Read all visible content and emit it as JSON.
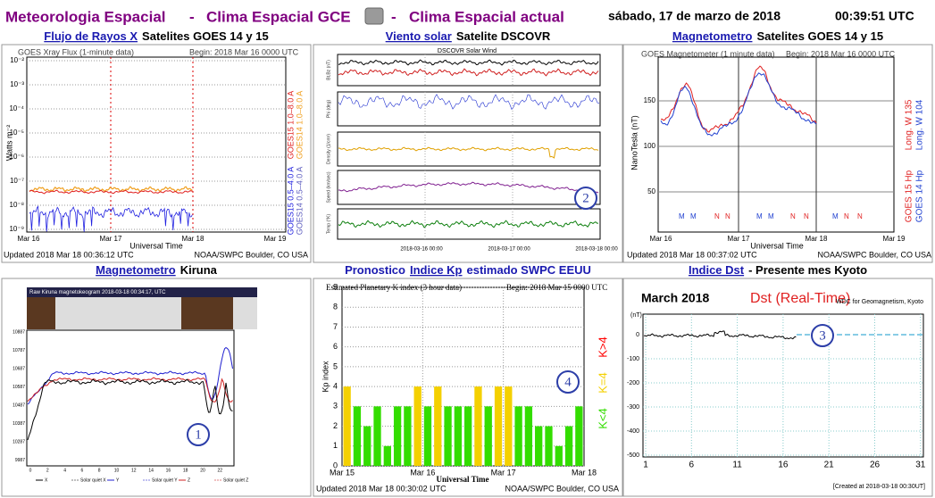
{
  "header": {
    "t1": "Meteorologia Espacial",
    "sep": "-",
    "t2": "Clima Espacial GCE",
    "t3": "Clima Espacial actual",
    "date": "sábado, 17 de marzo de 2018",
    "time": "00:39:51 UTC"
  },
  "badges": [
    "1",
    "2",
    "3",
    "4"
  ],
  "panels": [
    {
      "link": "Flujo de Rayos X",
      "caption": "Satelites GOES 14 y 15",
      "plot": {
        "title": "GOES Xray Flux (1-minute data)",
        "begin": "Begin:  2018 Mar 16 0000 UTC",
        "ylabel": "Watts m⁻²",
        "yticks": [
          "10⁻²",
          "10⁻³",
          "10⁻⁴",
          "10⁻⁵",
          "10⁻⁶",
          "10⁻⁷",
          "10⁻⁸",
          "10⁻⁹"
        ],
        "xticks": [
          "Mar 16",
          "Mar 17",
          "Mar 18",
          "Mar 19"
        ],
        "xlabel": "Universal Time",
        "updated": "Updated 2018 Mar 18 00:36:12 UTC",
        "credit": "NOAA/SWPC Boulder, CO USA",
        "legend": [
          {
            "label": "GOES15 1.0–8.0 A",
            "color": "#e02020"
          },
          {
            "label": "GOES14 1.0–8.0 A",
            "color": "#f0a020"
          },
          {
            "label": "GOES15 0.5–4.0 A",
            "color": "#2020e0"
          },
          {
            "label": "GOES14 0.5–4.0 A",
            "color": "#6060c0"
          }
        ]
      }
    },
    {
      "link": "Viento solar",
      "caption": "Satelite DSCOVR",
      "plot": {
        "title": "DSCOVR Solar Wind",
        "ylabels": [
          "Bt,Bz (nT)",
          "Phi (deg)",
          "Density (1/cm³)",
          "Speed (km/sec)",
          "Temp (°K)"
        ],
        "xticks": [
          "2018-03-16 00:00",
          "2018-03-17 00:00",
          "2018-03-18 00:00"
        ],
        "colors": [
          "#d02020",
          "#2030d0",
          "#e0a000",
          "#802090",
          "#108010"
        ]
      }
    },
    {
      "link": "Magnetometro",
      "caption": "Satelites GOES 14 y 15",
      "plot": {
        "title": "GOES Magnetometer (1 minute data)",
        "begin": "Begin:  2018 Mar 16 0000 UTC",
        "ylabel": "NanoTesla (nT)",
        "yticks": [
          "150",
          "100",
          "50"
        ],
        "xticks": [
          "Mar 16",
          "Mar 17",
          "Mar 18",
          "Mar 19"
        ],
        "xlabel": "Universal Time",
        "updated": "Updated 2018 Mar 18 00:37:02 UTC",
        "credit": "NOAA/SWPC Boulder, CO USA",
        "markers": [
          "M",
          "N"
        ],
        "legend": [
          {
            "label": "GOES 15 Hp",
            "color": "#e02020"
          },
          {
            "label": "GOES 14 Hp",
            "color": "#2040d0"
          },
          {
            "label": "Long. W 135",
            "color": "#e02020"
          },
          {
            "label": "Long. W 104",
            "color": "#2040d0"
          }
        ]
      }
    },
    {
      "link": "Magnetometro",
      "caption": "Kiruna",
      "plot": {
        "title": "Raw Kiruna magnetokeogram 2018-03-18 00:34:17, UTC",
        "yticks": [
          "10887",
          "10787",
          "10687",
          "10587",
          "10487",
          "10387",
          "10287",
          "9987"
        ],
        "xticks": [
          "0",
          "2",
          "4",
          "6",
          "8",
          "10",
          "12",
          "14",
          "16",
          "18",
          "20",
          "22"
        ],
        "legend": [
          {
            "label": "X",
            "color": "#000000"
          },
          {
            "label": "Solar quiet X",
            "color": "#808080"
          },
          {
            "label": "Y",
            "color": "#2020d0"
          },
          {
            "label": "Solar quiet Y",
            "color": "#8080e0"
          },
          {
            "label": "Z",
            "color": "#d02020"
          },
          {
            "label": "Solar quiet Z",
            "color": "#e08080"
          }
        ]
      }
    },
    {
      "prefix": "Pronostico",
      "link": "Indice Kp",
      "caption": "estimado SWPC EEUU",
      "chart": {
        "type": "bar",
        "title": "Estimated Planetary K index (3 hour data)",
        "begin": "Begin:  2018 Mar 15 0000 UTC",
        "ylabel": "Kp index",
        "xlabel": "Universal Time",
        "xticks": [
          "Mar 15",
          "Mar 16",
          "Mar 17",
          "Mar 18"
        ],
        "values": [
          4,
          3,
          2,
          3,
          1,
          3,
          3,
          4,
          3,
          4,
          3,
          3,
          3,
          4,
          3,
          4,
          4,
          3,
          3,
          2,
          2,
          1,
          2,
          3
        ],
        "bar_colors": [
          "#f4d000",
          "#33dd00",
          "#33dd00",
          "#33dd00",
          "#33dd00",
          "#33dd00",
          "#33dd00",
          "#f4d000",
          "#33dd00",
          "#f4d000",
          "#33dd00",
          "#33dd00",
          "#33dd00",
          "#f4d000",
          "#33dd00",
          "#f4d000",
          "#f4d000",
          "#33dd00",
          "#33dd00",
          "#33dd00",
          "#33dd00",
          "#33dd00",
          "#33dd00",
          "#33dd00"
        ],
        "ylim": [
          0,
          9
        ],
        "yticks": [
          0,
          1,
          2,
          3,
          4,
          5,
          6,
          7,
          8,
          9
        ],
        "grid": true,
        "updated": "Updated 2018 Mar 18 00:30:02 UTC",
        "credit": "NOAA/SWPC Boulder, CO USA",
        "legend": [
          {
            "label": "K<4",
            "color": "#33dd00"
          },
          {
            "label": "K=4",
            "color": "#f4d000"
          },
          {
            "label": "K>4",
            "color": "#ff0000"
          }
        ]
      }
    },
    {
      "link": "Indice Dst",
      "caption": "- Presente mes Kyoto",
      "plot": {
        "month": "March  2018",
        "title": "Dst (Real-Time)",
        "source": "WDC for Geomagnetism, Kyoto",
        "unit": "(nT)",
        "yticks": [
          "0",
          "-100",
          "-200",
          "-300",
          "-400",
          "-500"
        ],
        "xticks": [
          "1",
          "6",
          "11",
          "16",
          "21",
          "26",
          "31"
        ],
        "created": "[Created at 2018-03-18 00:30UT]"
      }
    }
  ]
}
